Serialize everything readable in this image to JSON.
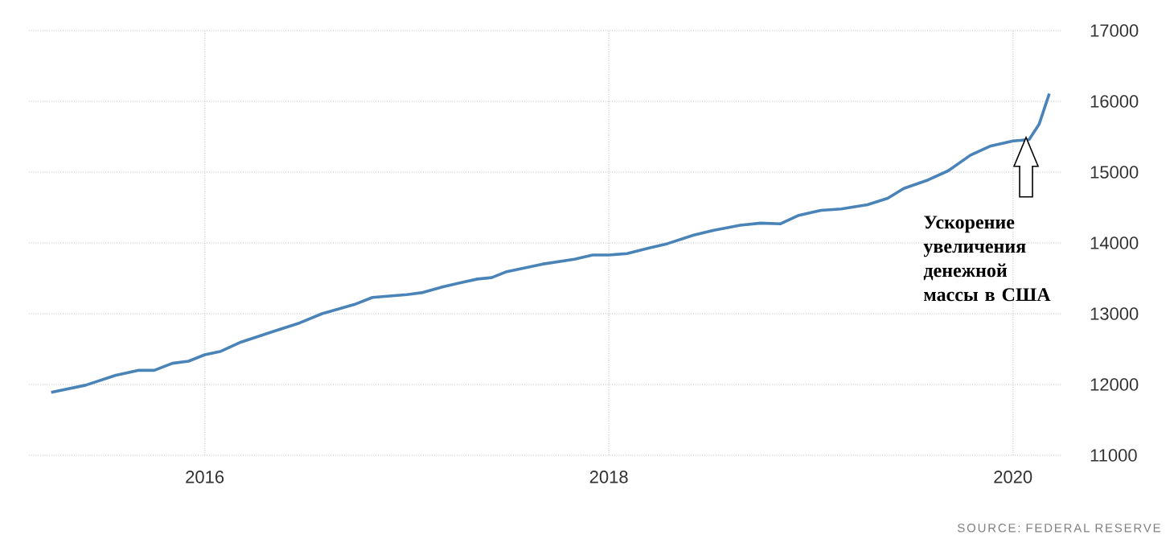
{
  "chart_data": {
    "type": "line",
    "x": [
      2015.24,
      2015.41,
      2015.56,
      2015.67,
      2015.75,
      2015.84,
      2015.92,
      2016.0,
      2016.08,
      2016.18,
      2016.34,
      2016.47,
      2016.58,
      2016.74,
      2016.83,
      2017.0,
      2017.08,
      2017.18,
      2017.27,
      2017.35,
      2017.42,
      2017.49,
      2017.67,
      2017.83,
      2017.92,
      2018.0,
      2018.09,
      2018.2,
      2018.29,
      2018.42,
      2018.52,
      2018.65,
      2018.75,
      2018.85,
      2018.94,
      2019.05,
      2019.15,
      2019.28,
      2019.38,
      2019.46,
      2019.58,
      2019.68,
      2019.79,
      2019.89,
      2020.0,
      2020.08,
      2020.13,
      2020.18
    ],
    "series": [
      {
        "color": "#4a83b8",
        "values": [
          11890,
          11990,
          12130,
          12200,
          12200,
          12300,
          12330,
          12420,
          12470,
          12600,
          12750,
          12870,
          13000,
          13130,
          13230,
          13270,
          13300,
          13380,
          13440,
          13490,
          13510,
          13590,
          13700,
          13770,
          13830,
          13830,
          13850,
          13930,
          13990,
          14110,
          14180,
          14250,
          14280,
          14270,
          14390,
          14460,
          14480,
          14540,
          14630,
          14770,
          14890,
          15020,
          15240,
          15370,
          15440,
          15460,
          15680,
          16110
        ]
      }
    ],
    "xlim": [
      2015.13,
      2020.24
    ],
    "ylim": [
      11000,
      17000
    ],
    "xticks": [
      2016,
      2018,
      2020
    ],
    "yticks": [
      11000,
      12000,
      13000,
      14000,
      15000,
      16000,
      17000
    ],
    "grid": true,
    "legend": false,
    "marker": "none",
    "line_style": "solid",
    "annotations": [
      "Ускорение увеличения денежной массы в США",
      "SOURCE: FEDERAL RESERVE"
    ]
  }
}
